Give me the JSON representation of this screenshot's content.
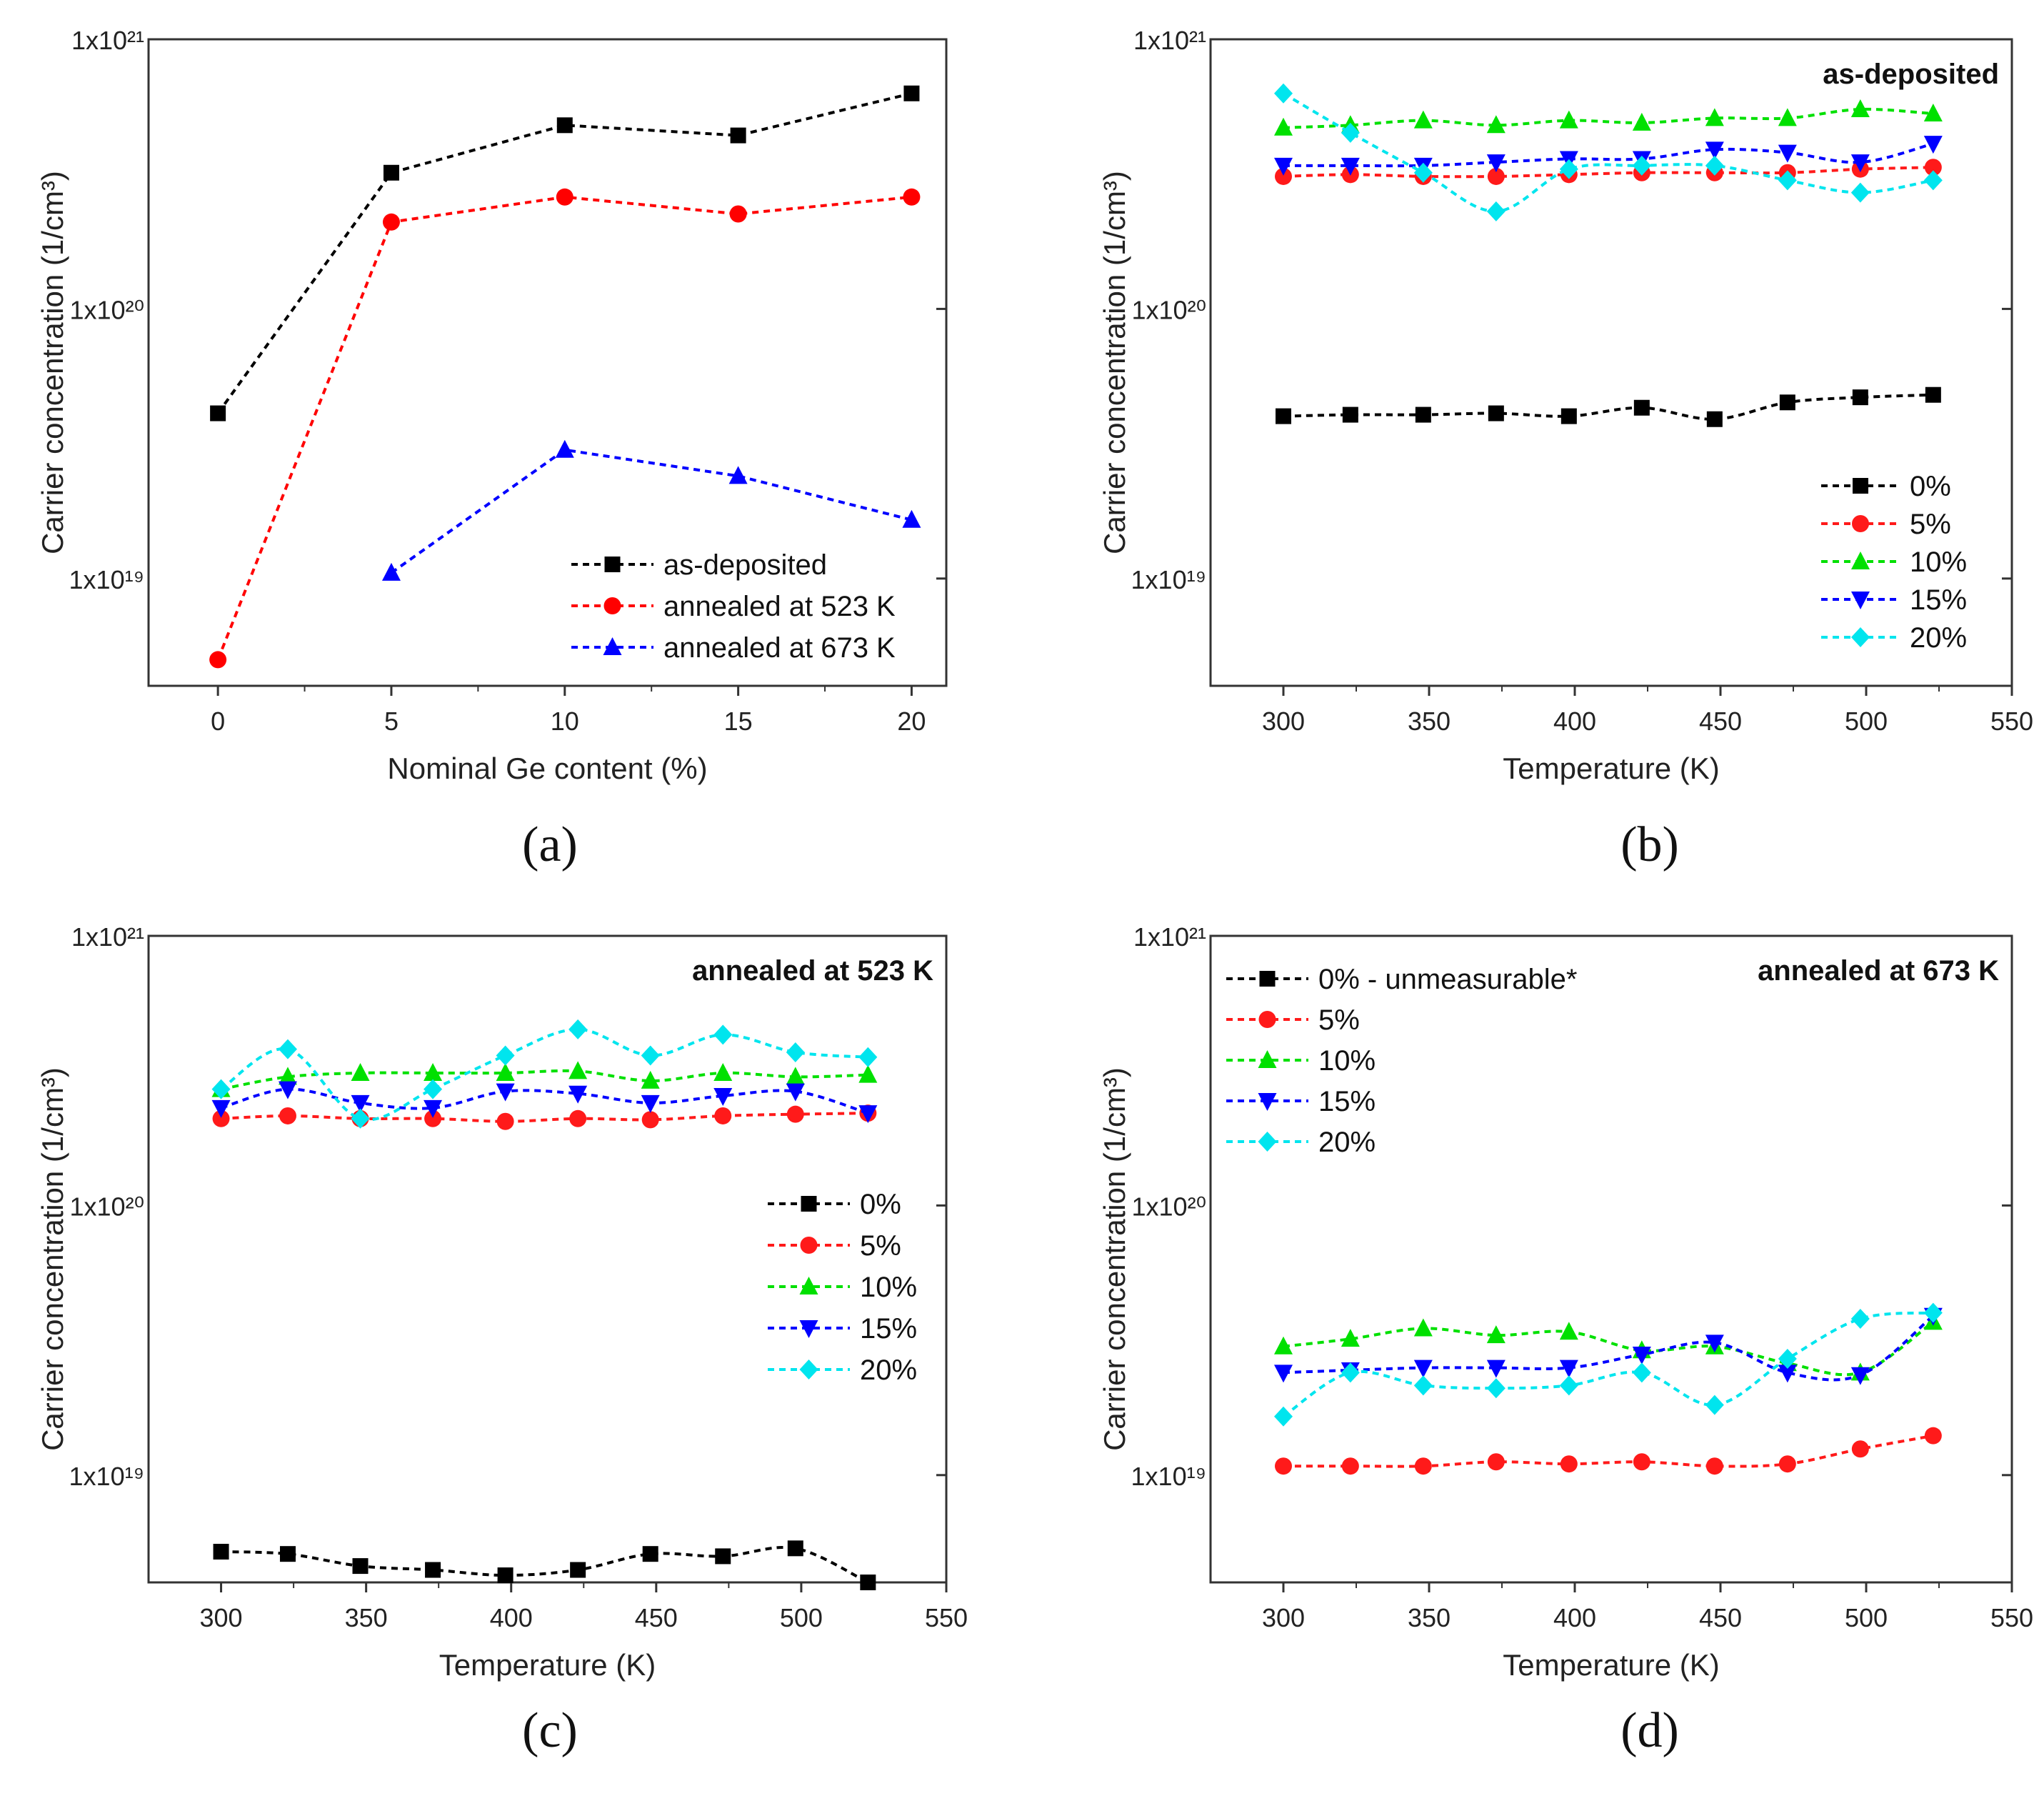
{
  "figure": {
    "panel_labels": [
      "(a)",
      "(b)",
      "(c)",
      "(d)"
    ]
  },
  "colors": {
    "as_deposited": "#000000",
    "annealed_523": "#ff0000",
    "annealed_673": "#0000ff",
    "pct0": "#000000",
    "pct5": "#ff1a1a",
    "pct10": "#00e000",
    "pct15": "#0000ff",
    "pct20": "#00e5ee"
  },
  "chart_data": [
    {
      "id": "a",
      "type": "line",
      "scale_y": "log",
      "xlabel": "Nominal Ge content (%)",
      "ylabel": "Carrier concentration (1/cm³)",
      "xlim": [
        -2,
        21
      ],
      "ylim": [
        4e+18,
        1e+21
      ],
      "xticks": [
        0,
        5,
        10,
        15,
        20
      ],
      "ytick_labels": [
        "1x10²¹",
        "1x10²⁰",
        "1x10¹⁹"
      ],
      "yticks": [
        1e+21,
        1e+20,
        1e+19
      ],
      "legend_position": "bottom-right",
      "corner_label": "",
      "series": [
        {
          "name": "as-deposited",
          "color_key": "as_deposited",
          "marker": "square",
          "x": [
            0,
            5,
            10,
            15,
            20
          ],
          "y": [
            4.1e+19,
            3.2e+20,
            4.8e+20,
            4.4e+20,
            6.3e+20
          ]
        },
        {
          "name": "annealed at 523 K",
          "color_key": "annealed_523",
          "marker": "circle",
          "x": [
            0,
            5,
            10,
            15,
            20
          ],
          "y": [
            5e+18,
            2.1e+20,
            2.6e+20,
            2.25e+20,
            2.6e+20
          ]
        },
        {
          "name": "annealed at 673 K",
          "color_key": "annealed_673",
          "marker": "triangle-up",
          "x": [
            5,
            10,
            15,
            20
          ],
          "y": [
            1.05e+19,
            3e+19,
            2.4e+19,
            1.65e+19
          ]
        }
      ]
    },
    {
      "id": "b",
      "type": "line",
      "scale_y": "log",
      "xlabel": "Temperature (K)",
      "ylabel": "Carrier concentration (1/cm³)",
      "xlim": [
        275,
        550
      ],
      "ylim": [
        4e+18,
        1e+21
      ],
      "xticks": [
        300,
        350,
        400,
        450,
        500,
        550
      ],
      "ytick_labels": [
        "1x10²¹",
        "1x10²⁰",
        "1x10¹⁹"
      ],
      "yticks": [
        1e+21,
        1e+20,
        1e+19
      ],
      "legend_position": "right",
      "corner_label": "as-deposited",
      "series": [
        {
          "name": "0%",
          "color_key": "pct0",
          "marker": "square",
          "x": [
            300,
            323,
            348,
            373,
            398,
            423,
            448,
            473,
            498,
            523
          ],
          "y": [
            4e+19,
            4.05e+19,
            4.05e+19,
            4.1e+19,
            4e+19,
            4.3e+19,
            3.9e+19,
            4.5e+19,
            4.7e+19,
            4.8e+19
          ]
        },
        {
          "name": "5%",
          "color_key": "pct5",
          "marker": "circle",
          "x": [
            300,
            323,
            348,
            373,
            398,
            423,
            448,
            473,
            498,
            523
          ],
          "y": [
            3.1e+20,
            3.15e+20,
            3.1e+20,
            3.1e+20,
            3.15e+20,
            3.2e+20,
            3.2e+20,
            3.2e+20,
            3.3e+20,
            3.35e+20
          ]
        },
        {
          "name": "10%",
          "color_key": "pct10",
          "marker": "triangle-up",
          "x": [
            300,
            323,
            348,
            373,
            398,
            423,
            448,
            473,
            498,
            523
          ],
          "y": [
            4.7e+20,
            4.8e+20,
            5e+20,
            4.8e+20,
            5e+20,
            4.9e+20,
            5.1e+20,
            5.1e+20,
            5.5e+20,
            5.3e+20
          ]
        },
        {
          "name": "15%",
          "color_key": "pct15",
          "marker": "triangle-down",
          "x": [
            300,
            323,
            348,
            373,
            398,
            423,
            448,
            473,
            498,
            523
          ],
          "y": [
            3.4e+20,
            3.4e+20,
            3.4e+20,
            3.5e+20,
            3.6e+20,
            3.6e+20,
            3.9e+20,
            3.8e+20,
            3.5e+20,
            4.1e+20
          ]
        },
        {
          "name": "20%",
          "color_key": "pct20",
          "marker": "diamond",
          "x": [
            300,
            323,
            348,
            373,
            398,
            423,
            448,
            473,
            498,
            523
          ],
          "y": [
            6.3e+20,
            4.5e+20,
            3.2e+20,
            2.3e+20,
            3.3e+20,
            3.4e+20,
            3.4e+20,
            3e+20,
            2.7e+20,
            3e+20
          ]
        }
      ]
    },
    {
      "id": "c",
      "type": "line",
      "scale_y": "log",
      "xlabel": "Temperature (K)",
      "ylabel": "Carrier concentration (1/cm³)",
      "xlim": [
        275,
        550
      ],
      "ylim": [
        4e+18,
        1e+21
      ],
      "xticks": [
        300,
        350,
        400,
        450,
        500,
        550
      ],
      "ytick_labels": [
        "1x10²¹",
        "1x10²⁰",
        "1x10¹⁹"
      ],
      "yticks": [
        1e+21,
        1e+20,
        1e+19
      ],
      "legend_position": "right",
      "corner_label": "annealed at 523 K",
      "series": [
        {
          "name": "0%",
          "color_key": "pct0",
          "marker": "square",
          "x": [
            300,
            323,
            348,
            373,
            398,
            423,
            448,
            473,
            498,
            523
          ],
          "y": [
            5.2e+18,
            5.1e+18,
            4.6e+18,
            4.45e+18,
            4.25e+18,
            4.45e+18,
            5.1e+18,
            5e+18,
            5.35e+18,
            4e+18
          ]
        },
        {
          "name": "5%",
          "color_key": "pct5",
          "marker": "circle",
          "x": [
            300,
            323,
            348,
            373,
            398,
            423,
            448,
            473,
            498,
            523
          ],
          "y": [
            2.1e+20,
            2.15e+20,
            2.1e+20,
            2.1e+20,
            2.05e+20,
            2.1e+20,
            2.08e+20,
            2.15e+20,
            2.18e+20,
            2.2e+20
          ]
        },
        {
          "name": "10%",
          "color_key": "pct10",
          "marker": "triangle-up",
          "x": [
            300,
            323,
            348,
            373,
            398,
            423,
            448,
            473,
            498,
            523
          ],
          "y": [
            2.7e+20,
            3e+20,
            3.1e+20,
            3.1e+20,
            3.1e+20,
            3.15e+20,
            2.9e+20,
            3.1e+20,
            3e+20,
            3.05e+20
          ]
        },
        {
          "name": "15%",
          "color_key": "pct15",
          "marker": "triangle-down",
          "x": [
            300,
            323,
            348,
            373,
            398,
            423,
            448,
            473,
            498,
            523
          ],
          "y": [
            2.3e+20,
            2.7e+20,
            2.4e+20,
            2.3e+20,
            2.65e+20,
            2.6e+20,
            2.4e+20,
            2.55e+20,
            2.65e+20,
            2.2e+20
          ]
        },
        {
          "name": "20%",
          "color_key": "pct20",
          "marker": "diamond",
          "x": [
            300,
            323,
            348,
            373,
            398,
            423,
            448,
            473,
            498,
            523
          ],
          "y": [
            2.7e+20,
            3.8e+20,
            2.1e+20,
            2.7e+20,
            3.6e+20,
            4.5e+20,
            3.6e+20,
            4.3e+20,
            3.7e+20,
            3.55e+20
          ]
        }
      ]
    },
    {
      "id": "d",
      "type": "line",
      "scale_y": "log",
      "xlabel": "Temperature (K)",
      "ylabel": "Carrier concentration (1/cm³)",
      "xlim": [
        275,
        550
      ],
      "ylim": [
        4e+18,
        1e+21
      ],
      "xticks": [
        300,
        350,
        400,
        450,
        500,
        550
      ],
      "ytick_labels": [
        "1x10²¹",
        "1x10²⁰",
        "1x10¹⁹"
      ],
      "yticks": [
        1e+21,
        1e+20,
        1e+19
      ],
      "legend_position": "top-left",
      "corner_label": "annealed at 673 K",
      "series": [
        {
          "name": "0% - unmeasurable*",
          "color_key": "pct0",
          "marker": "square",
          "x": [],
          "y": []
        },
        {
          "name": "5%",
          "color_key": "pct5",
          "marker": "circle",
          "x": [
            300,
            323,
            348,
            373,
            398,
            423,
            448,
            473,
            498,
            523
          ],
          "y": [
            1.08e+19,
            1.08e+19,
            1.08e+19,
            1.12e+19,
            1.1e+19,
            1.12e+19,
            1.08e+19,
            1.1e+19,
            1.25e+19,
            1.4e+19
          ]
        },
        {
          "name": "10%",
          "color_key": "pct10",
          "marker": "triangle-up",
          "x": [
            300,
            323,
            348,
            373,
            398,
            423,
            448,
            473,
            498,
            523
          ],
          "y": [
            3e+19,
            3.2e+19,
            3.5e+19,
            3.3e+19,
            3.4e+19,
            2.9e+19,
            3e+19,
            2.6e+19,
            2.4e+19,
            3.7e+19
          ]
        },
        {
          "name": "15%",
          "color_key": "pct15",
          "marker": "triangle-down",
          "x": [
            300,
            323,
            348,
            373,
            398,
            423,
            448,
            473,
            498,
            523
          ],
          "y": [
            2.4e+19,
            2.45e+19,
            2.5e+19,
            2.5e+19,
            2.5e+19,
            2.8e+19,
            3.1e+19,
            2.4e+19,
            2.35e+19,
            3.9e+19
          ]
        },
        {
          "name": "20%",
          "color_key": "pct20",
          "marker": "diamond",
          "x": [
            300,
            323,
            348,
            373,
            398,
            423,
            448,
            473,
            498,
            523
          ],
          "y": [
            1.65e+19,
            2.4e+19,
            2.15e+19,
            2.1e+19,
            2.15e+19,
            2.4e+19,
            1.82e+19,
            2.7e+19,
            3.8e+19,
            4e+19
          ]
        }
      ]
    }
  ]
}
